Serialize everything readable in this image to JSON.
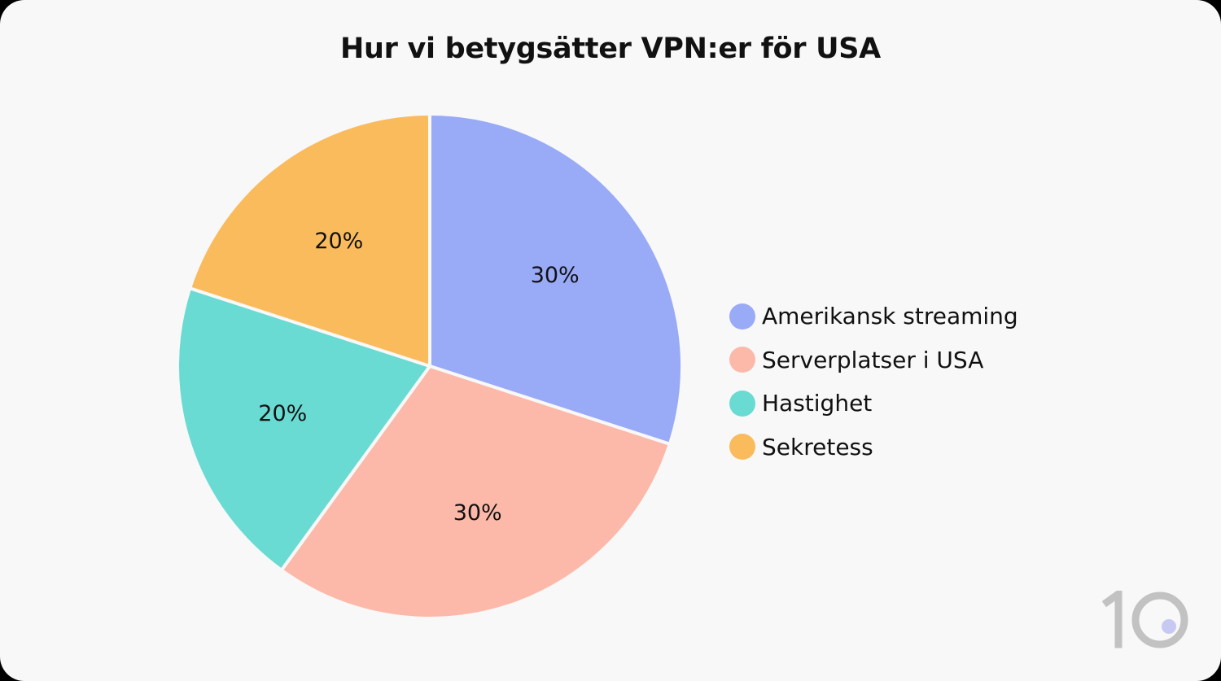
{
  "chart_data": {
    "type": "pie",
    "title": "Hur vi betygsätter VPN:er för USA",
    "categories": [
      "Amerikansk streaming",
      "Serverplatser i USA",
      "Hastighet",
      "Sekretess"
    ],
    "values": [
      30,
      30,
      20,
      20
    ],
    "value_labels": [
      "30%",
      "30%",
      "20%",
      "20%"
    ],
    "colors": [
      "#99aaf7",
      "#fcb9a9",
      "#69dbd2",
      "#fabb5d"
    ],
    "legend": "right",
    "start": "top",
    "direction": "clockwise"
  },
  "logo": {
    "text": "10",
    "accent_color": "#c7c9f3"
  }
}
